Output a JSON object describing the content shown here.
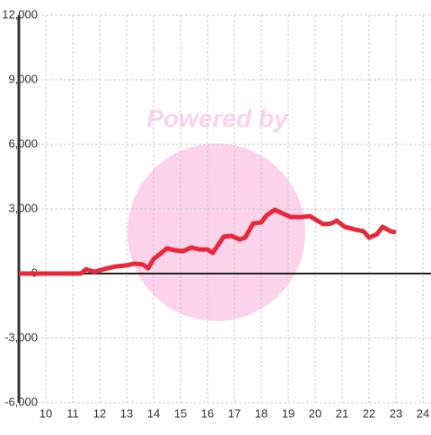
{
  "chart_data": {
    "type": "line",
    "watermark": "Powered by",
    "x": [
      9.0,
      10.0,
      11.3,
      11.5,
      11.8,
      12.3,
      12.6,
      13.0,
      13.3,
      13.6,
      13.8,
      14.0,
      14.5,
      14.8,
      15.1,
      15.4,
      15.7,
      16.0,
      16.2,
      16.6,
      16.9,
      17.2,
      17.4,
      17.7,
      18.0,
      18.2,
      18.5,
      18.8,
      19.1,
      19.5,
      19.8,
      20.3,
      20.6,
      20.8,
      21.1,
      21.5,
      21.8,
      22.0,
      22.3,
      22.5,
      22.8,
      23.0
    ],
    "series": [
      {
        "color": "#e8283c",
        "values": [
          0,
          0,
          0,
          200,
          80,
          250,
          330,
          380,
          460,
          420,
          250,
          670,
          1170,
          1080,
          1040,
          1210,
          1120,
          1120,
          960,
          1710,
          1750,
          1580,
          1670,
          2330,
          2375,
          2710,
          2960,
          2790,
          2625,
          2625,
          2670,
          2290,
          2330,
          2460,
          2170,
          2040,
          1960,
          1670,
          1830,
          2170,
          1960,
          1920
        ]
      }
    ],
    "xlim": [
      9,
      24.3
    ],
    "xticks": [
      10,
      11,
      12,
      13,
      14,
      15,
      16,
      17,
      18,
      19,
      20,
      21,
      22,
      23,
      24
    ],
    "ylim": [
      -6000,
      12000
    ],
    "yticks": [
      {
        "value": -6000,
        "label": "-6,000"
      },
      {
        "value": -3000,
        "label": "-3,000"
      },
      0,
      {
        "value": 3000,
        "label": "3,000"
      },
      {
        "value": 6000,
        "label": "6,000"
      },
      {
        "value": 9000,
        "label": "9,000"
      },
      {
        "value": 12000,
        "label": "12,000"
      }
    ],
    "grid": true
  }
}
